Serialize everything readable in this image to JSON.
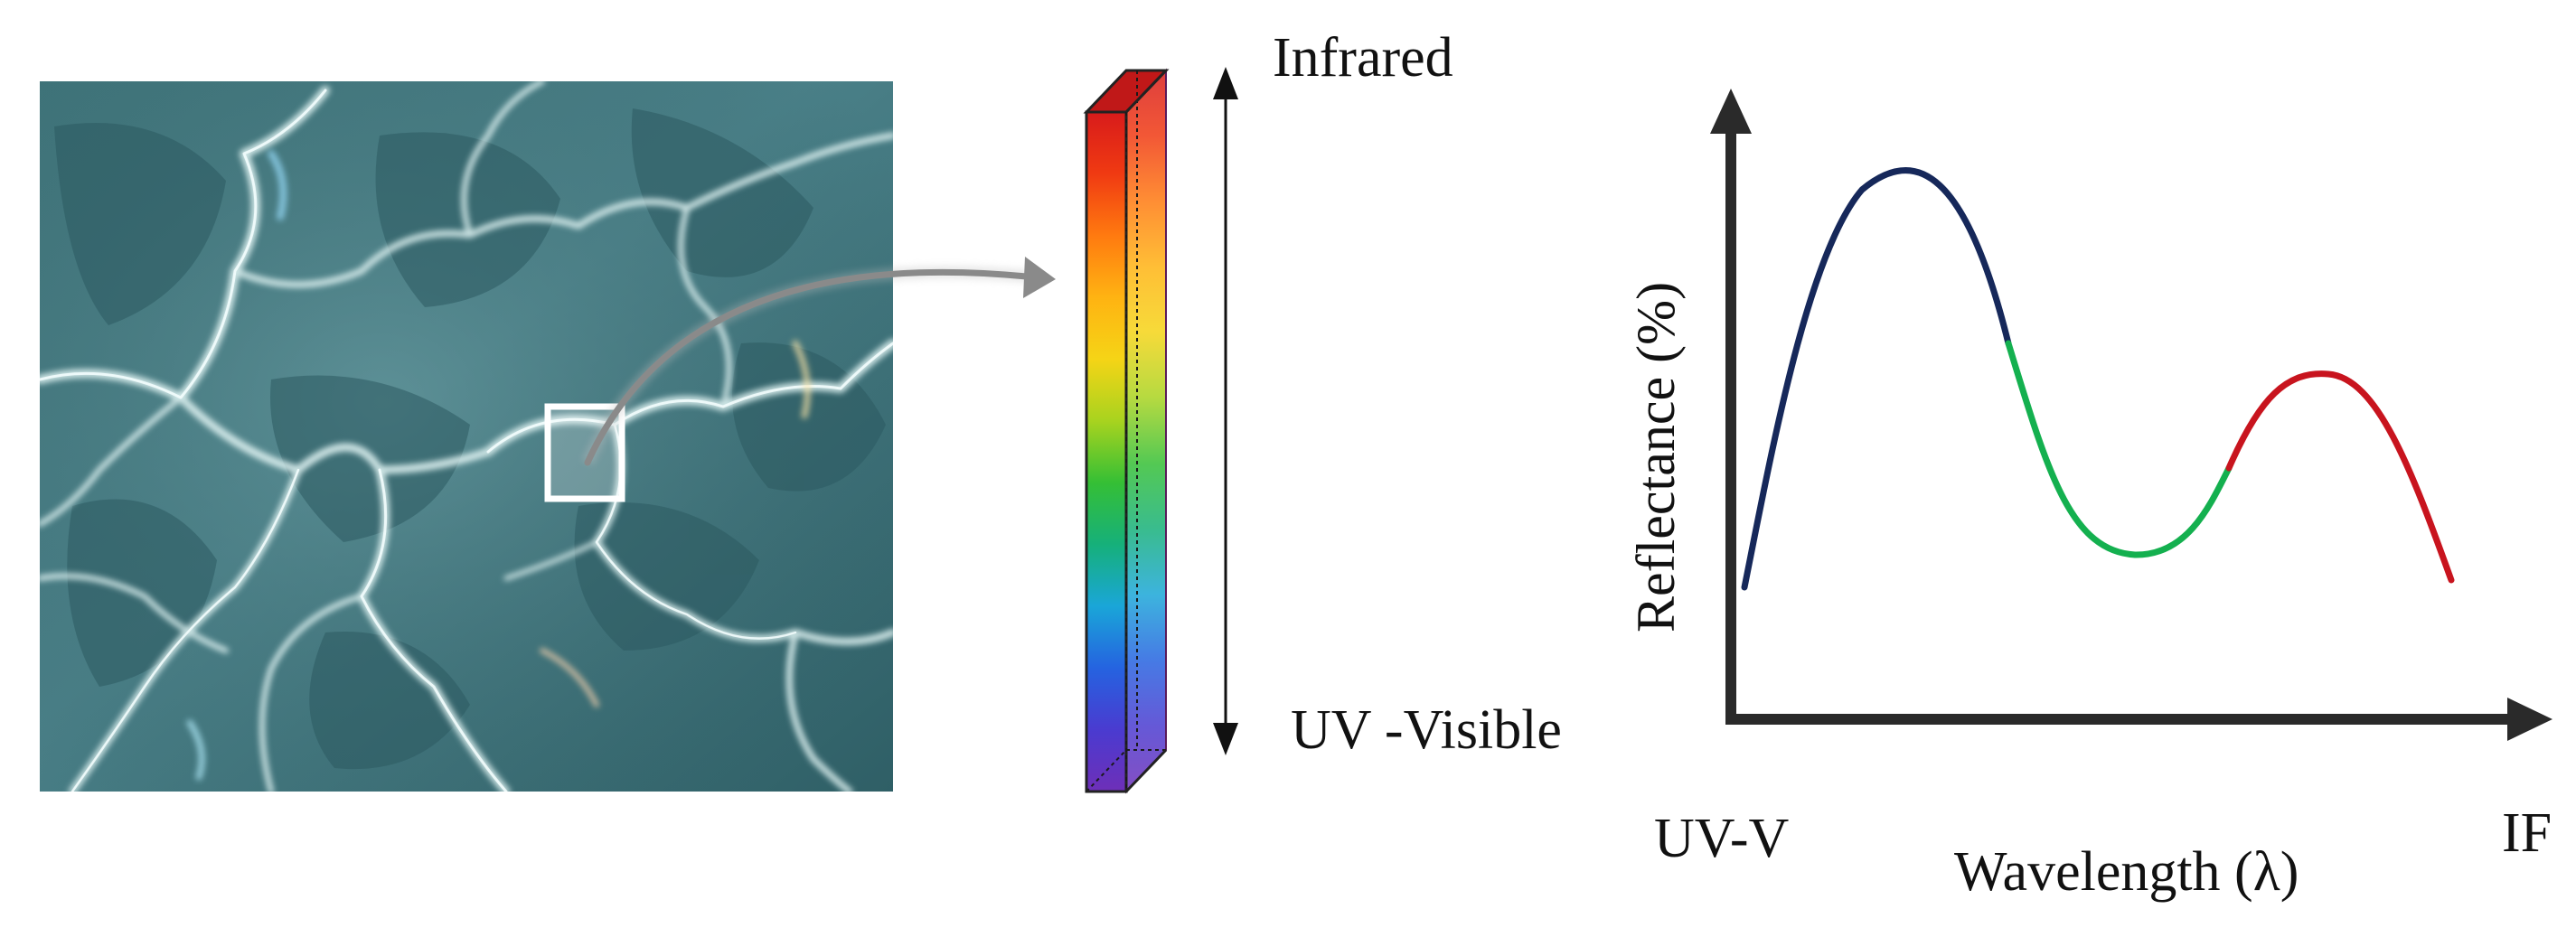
{
  "spectrum_bar": {
    "top_label": "Infrared",
    "bottom_label": "UV -Visible"
  },
  "reflectance_chart": {
    "y_axis_label": "Reflectance (%)",
    "x_axis_label": "Wavelength (λ)",
    "x_start_label": "UV-V",
    "x_end_label": "IF",
    "curve_colors": {
      "uv_visible_segment": "#16285a",
      "visible_segment": "#14b04f",
      "infrared_segment": "#c8141e"
    }
  },
  "colors": {
    "water_base": "#3d6e74",
    "selection_box": "#ffffff",
    "connector_arrow": "#8a8a8a",
    "axis": "#2a2a2a"
  },
  "bar_gradient": [
    "#d81b1b",
    "#f03a12",
    "#ff7a10",
    "#ffb312",
    "#f5d416",
    "#a8d31f",
    "#35bf35",
    "#16b07a",
    "#1aa6d8",
    "#2563e0",
    "#4a3bd0",
    "#6e2fb8"
  ]
}
